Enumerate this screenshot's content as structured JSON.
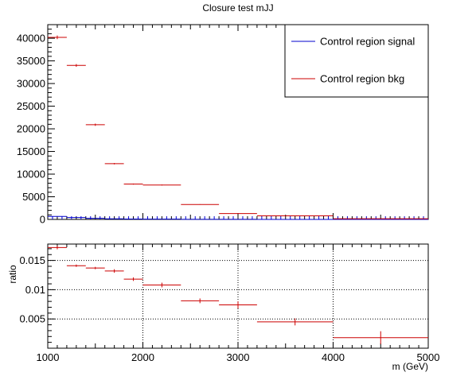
{
  "chart_data": [
    {
      "type": "step-histogram",
      "title": "Closure test mJJ",
      "xlabel": "",
      "ylabel": "",
      "xlim": [
        1000,
        5000
      ],
      "ylim": [
        0,
        43000
      ],
      "xticks": [],
      "yticks": [
        0,
        5000,
        10000,
        15000,
        20000,
        25000,
        30000,
        35000,
        40000
      ],
      "ytick_labels": [
        "0",
        "5000",
        "10000",
        "15000",
        "20000",
        "25000",
        "30000",
        "35000",
        "40000"
      ],
      "legend": {
        "placement": "top-right",
        "entries": [
          {
            "label": "Control region signal",
            "color": "#0000cc"
          },
          {
            "label": "Control region bkg",
            "color": "#cc0000"
          }
        ]
      },
      "series": [
        {
          "name": "Control region bkg",
          "color": "#cc0000",
          "x_low": [
            1000,
            1200,
            1400,
            1600,
            1800,
            2000,
            2400,
            2800,
            3200,
            4000
          ],
          "x_high": [
            1200,
            1400,
            1600,
            1800,
            2000,
            2400,
            2800,
            3200,
            4000,
            5000
          ],
          "values": [
            40200,
            34000,
            20900,
            12300,
            7800,
            7600,
            3300,
            1300,
            800,
            150
          ],
          "errors": [
            400,
            300,
            250,
            150,
            120,
            100,
            60,
            40,
            30,
            20
          ]
        },
        {
          "name": "Control region signal",
          "color": "#0000cc",
          "x_low": [
            1000,
            1200,
            1400,
            1600,
            1800,
            2000,
            2400,
            2800,
            3200,
            4000
          ],
          "x_high": [
            1200,
            1400,
            1600,
            1800,
            2000,
            2400,
            2800,
            3200,
            4000,
            5000
          ],
          "values": [
            650,
            420,
            250,
            140,
            80,
            70,
            30,
            12,
            5,
            1
          ],
          "errors": [
            40,
            35,
            30,
            25,
            20,
            20,
            15,
            10,
            8,
            5
          ]
        }
      ]
    },
    {
      "type": "step-histogram",
      "title": "",
      "xlabel": "m (GeV)",
      "ylabel": "ratio",
      "xlim": [
        1000,
        5000
      ],
      "ylim": [
        0,
        0.0178
      ],
      "xticks": [
        1000,
        2000,
        3000,
        4000,
        5000
      ],
      "xtick_labels": [
        "1000",
        "2000",
        "3000",
        "4000",
        "5000"
      ],
      "yticks": [
        0.005,
        0.01,
        0.015
      ],
      "ytick_labels": [
        "0.005",
        "0.01",
        "0.015"
      ],
      "grid": true,
      "series": [
        {
          "name": "ratio",
          "color": "#cc0000",
          "x_low": [
            1000,
            1200,
            1400,
            1600,
            1800,
            2000,
            2400,
            2800,
            3200,
            4000
          ],
          "x_high": [
            1200,
            1400,
            1600,
            1800,
            2000,
            2400,
            2800,
            3200,
            4000,
            5000
          ],
          "values": [
            0.0172,
            0.0141,
            0.0137,
            0.0132,
            0.0118,
            0.0108,
            0.0081,
            0.0074,
            0.0045,
            0.0018
          ],
          "errors": [
            0.0003,
            0.0002,
            0.0002,
            0.0003,
            0.0003,
            0.0004,
            0.0004,
            0.0006,
            0.0006,
            0.0011
          ]
        }
      ]
    }
  ]
}
